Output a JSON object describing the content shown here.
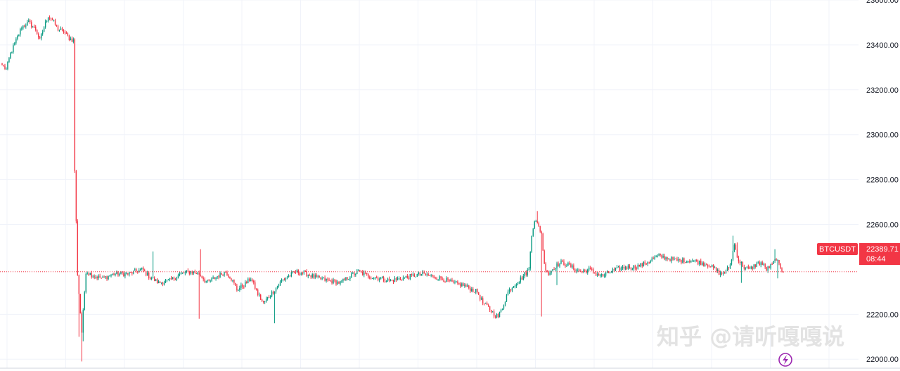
{
  "chart_data": {
    "type": "candlestick",
    "symbol": "BTCUSDT",
    "last_price": 22389.71,
    "last_price_label": "22389.71",
    "countdown": "08:44",
    "ylim": [
      21960,
      23600
    ],
    "y_ticks": [
      {
        "value": 23600,
        "label": "23600.00"
      },
      {
        "value": 23400,
        "label": "23400.00"
      },
      {
        "value": 23200,
        "label": "23200.00"
      },
      {
        "value": 23000,
        "label": "23000.00"
      },
      {
        "value": 22800,
        "label": "22800.00"
      },
      {
        "value": 22600,
        "label": "22600.00"
      },
      {
        "value": 22200,
        "label": "22200.00"
      },
      {
        "value": 22000,
        "label": "22000.00"
      }
    ],
    "grid": true,
    "up_color": "#089981",
    "down_color": "#f23645",
    "keypoints": [
      [
        0,
        23310
      ],
      [
        3,
        23290
      ],
      [
        6,
        23360
      ],
      [
        10,
        23420
      ],
      [
        14,
        23480
      ],
      [
        19,
        23500
      ],
      [
        24,
        23470
      ],
      [
        27,
        23420
      ],
      [
        30,
        23480
      ],
      [
        33,
        23530
      ],
      [
        36,
        23510
      ],
      [
        40,
        23470
      ],
      [
        44,
        23460
      ],
      [
        48,
        23430
      ],
      [
        51,
        23420
      ],
      [
        52,
        22840
      ],
      [
        54,
        22380
      ],
      [
        57,
        22120
      ],
      [
        60,
        22390
      ],
      [
        66,
        22370
      ],
      [
        72,
        22360
      ],
      [
        80,
        22380
      ],
      [
        90,
        22380
      ],
      [
        100,
        22400
      ],
      [
        105,
        22370
      ],
      [
        112,
        22340
      ],
      [
        120,
        22350
      ],
      [
        128,
        22380
      ],
      [
        135,
        22390
      ],
      [
        141,
        22380
      ],
      [
        147,
        22340
      ],
      [
        154,
        22370
      ],
      [
        160,
        22390
      ],
      [
        164,
        22360
      ],
      [
        168,
        22310
      ],
      [
        173,
        22330
      ],
      [
        178,
        22360
      ],
      [
        183,
        22290
      ],
      [
        187,
        22250
      ],
      [
        191,
        22280
      ],
      [
        195,
        22310
      ],
      [
        200,
        22350
      ],
      [
        205,
        22370
      ],
      [
        210,
        22390
      ],
      [
        218,
        22380
      ],
      [
        226,
        22360
      ],
      [
        234,
        22350
      ],
      [
        242,
        22340
      ],
      [
        249,
        22370
      ],
      [
        255,
        22390
      ],
      [
        262,
        22370
      ],
      [
        270,
        22360
      ],
      [
        278,
        22350
      ],
      [
        286,
        22360
      ],
      [
        293,
        22370
      ],
      [
        300,
        22380
      ],
      [
        307,
        22370
      ],
      [
        314,
        22360
      ],
      [
        322,
        22340
      ],
      [
        330,
        22330
      ],
      [
        336,
        22310
      ],
      [
        340,
        22300
      ],
      [
        344,
        22250
      ],
      [
        348,
        22230
      ],
      [
        352,
        22200
      ],
      [
        355,
        22190
      ],
      [
        358,
        22230
      ],
      [
        362,
        22300
      ],
      [
        366,
        22330
      ],
      [
        370,
        22350
      ],
      [
        373,
        22370
      ],
      [
        377,
        22400
      ],
      [
        379,
        22560
      ],
      [
        381,
        22620
      ],
      [
        384,
        22590
      ],
      [
        386,
        22560
      ],
      [
        388,
        22420
      ],
      [
        391,
        22380
      ],
      [
        395,
        22410
      ],
      [
        400,
        22430
      ],
      [
        405,
        22420
      ],
      [
        410,
        22400
      ],
      [
        415,
        22390
      ],
      [
        420,
        22400
      ],
      [
        425,
        22380
      ],
      [
        430,
        22370
      ],
      [
        435,
        22390
      ],
      [
        440,
        22400
      ],
      [
        446,
        22410
      ],
      [
        452,
        22410
      ],
      [
        458,
        22420
      ],
      [
        464,
        22440
      ],
      [
        470,
        22460
      ],
      [
        476,
        22450
      ],
      [
        482,
        22440
      ],
      [
        488,
        22440
      ],
      [
        494,
        22440
      ],
      [
        500,
        22430
      ],
      [
        506,
        22420
      ],
      [
        510,
        22400
      ],
      [
        514,
        22380
      ],
      [
        518,
        22390
      ],
      [
        521,
        22420
      ],
      [
        524,
        22510
      ],
      [
        527,
        22440
      ],
      [
        531,
        22410
      ],
      [
        535,
        22400
      ],
      [
        539,
        22420
      ],
      [
        543,
        22430
      ],
      [
        547,
        22400
      ],
      [
        551,
        22420
      ],
      [
        554,
        22450
      ],
      [
        557,
        22400
      ],
      [
        559,
        22389.71
      ]
    ],
    "spikes": [
      {
        "index": 57,
        "low": 21990
      },
      {
        "index": 58,
        "low": 22080
      },
      {
        "index": 55,
        "low": 22100
      },
      {
        "index": 142,
        "high": 22490
      },
      {
        "index": 141,
        "low": 22180
      },
      {
        "index": 108,
        "high": 22480
      },
      {
        "index": 195,
        "low": 22160
      },
      {
        "index": 383,
        "high": 22660
      },
      {
        "index": 386,
        "low": 22190
      },
      {
        "index": 397,
        "low": 22330
      },
      {
        "index": 523,
        "high": 22550
      },
      {
        "index": 526,
        "high": 22520
      },
      {
        "index": 529,
        "low": 22340
      },
      {
        "index": 553,
        "high": 22490
      },
      {
        "index": 555,
        "low": 22360
      }
    ]
  },
  "watermark": {
    "text": "知乎 @请听嘎嘎说"
  },
  "icons": {
    "lightning": "lightning-bolt-icon"
  }
}
